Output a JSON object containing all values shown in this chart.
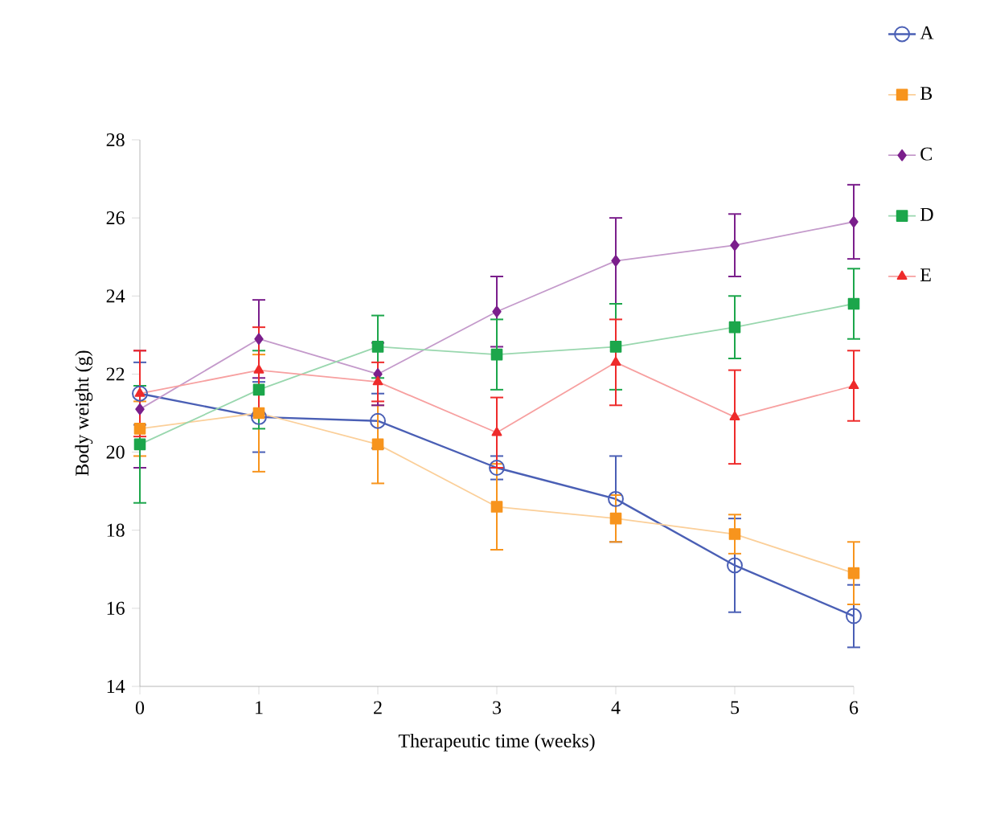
{
  "chart_data": {
    "type": "line",
    "xlabel": "Therapeutic time (weeks)",
    "ylabel": "Body weight (g)",
    "x": [
      0,
      1,
      2,
      3,
      4,
      5,
      6
    ],
    "xlim": [
      0,
      6
    ],
    "xticks": [
      0,
      1,
      2,
      3,
      4,
      5,
      6
    ],
    "ylim": [
      14,
      28
    ],
    "yticks": [
      14,
      16,
      18,
      20,
      22,
      24,
      26,
      28
    ],
    "legend": "top right",
    "series": [
      {
        "name": "A",
        "color": "#4a5fb5",
        "marker": "circle",
        "values": [
          21.5,
          20.9,
          20.8,
          19.6,
          18.8,
          17.1,
          15.8
        ],
        "errors": [
          0.8,
          0.9,
          0.7,
          0.3,
          1.1,
          1.2,
          0.8
        ]
      },
      {
        "name": "B",
        "color": "#f7941d",
        "marker": "square",
        "values": [
          20.6,
          21.0,
          20.2,
          18.6,
          18.3,
          17.9,
          16.9
        ],
        "errors": [
          0.7,
          1.5,
          1.0,
          1.1,
          0.6,
          0.5,
          0.8
        ]
      },
      {
        "name": "C",
        "color": "#7b1f8c",
        "marker": "diamond",
        "values": [
          21.1,
          22.9,
          22.0,
          23.6,
          24.9,
          25.3,
          25.9
        ],
        "errors": [
          1.5,
          1.0,
          0.8,
          0.9,
          1.1,
          0.8,
          0.95
        ]
      },
      {
        "name": "D",
        "color": "#1ca64b",
        "marker": "square",
        "values": [
          20.2,
          21.6,
          22.7,
          22.5,
          22.7,
          23.2,
          23.8
        ],
        "errors": [
          1.5,
          1.0,
          0.8,
          0.9,
          1.1,
          0.8,
          0.9
        ]
      },
      {
        "name": "E",
        "color": "#ee2b2b",
        "marker": "triangle",
        "values": [
          21.5,
          22.1,
          21.8,
          20.5,
          22.3,
          20.9,
          21.7
        ],
        "errors": [
          1.1,
          1.1,
          0.5,
          0.9,
          1.1,
          1.2,
          0.9
        ]
      }
    ]
  }
}
